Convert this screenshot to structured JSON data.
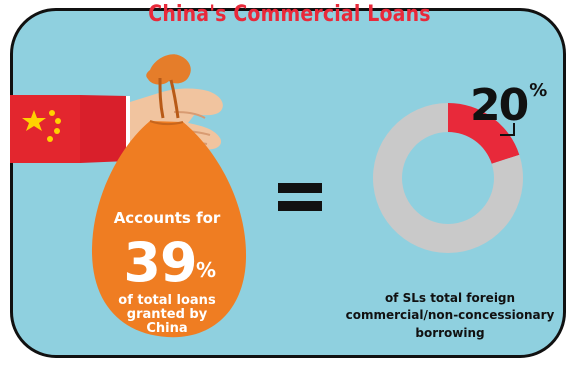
{
  "title": "China's Commercial Loans",
  "left_card": {
    "line1": "Accounts for",
    "big_value": "39",
    "big_unit": "%",
    "line2": "of total loans",
    "line3": "granted by",
    "line4": "China"
  },
  "right_card": {
    "value_text": "20",
    "unit_text": "%",
    "line1": "of SLs total foreign",
    "line2": "commercial/non-concessionary",
    "line3": "borrowing"
  },
  "chart_data": {
    "type": "pie",
    "slices": [
      {
        "label": "of SLs total foreign commercial/non-concessionary borrowing",
        "value": 20
      },
      {
        "label": "",
        "value": 80
      }
    ],
    "title": "China's Commercial Loans"
  },
  "colors": {
    "background": "#8fd0df",
    "accent_red": "#e8293a",
    "ring_gray": "#c9c9c9",
    "bag_orange": "#ef7d22",
    "text_dark": "#111111"
  },
  "icons": [
    "china-flag-icon",
    "money-bag-icon",
    "hand-icon",
    "equals-icon",
    "donut-chart-icon"
  ]
}
